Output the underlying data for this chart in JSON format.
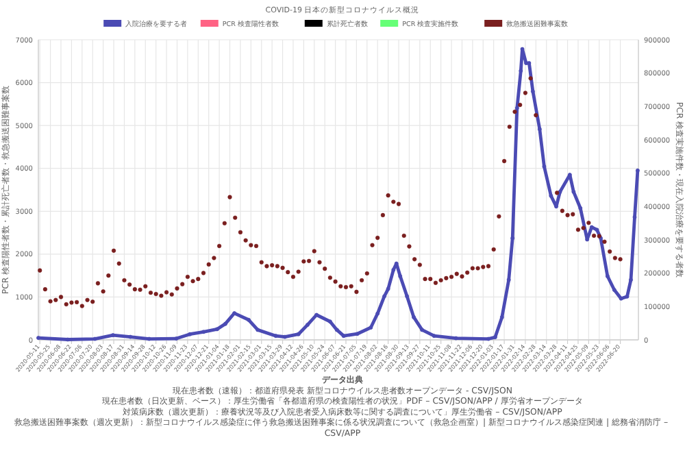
{
  "chart_data": {
    "type": "line",
    "title": "COVID-19 日本の新型コロナウイルス概況",
    "ylabel": "PCR 検査陽性者数・累計死亡者数・救急搬送困難事案数",
    "y2label": "PCR 検査実施件数・現在入院治療を要する者数",
    "legend": "top",
    "grid": true,
    "xlim": [
      "2020-05-09",
      "2022-07-14"
    ],
    "ylim": [
      0,
      7000
    ],
    "yticks": [
      0,
      1000,
      2000,
      3000,
      4000,
      5000,
      6000,
      7000
    ],
    "y2lim": [
      0,
      900000
    ],
    "y2ticks": [
      0,
      100000,
      200000,
      300000,
      400000,
      500000,
      600000,
      700000,
      800000,
      900000
    ],
    "xticks": [
      "2020-05-11",
      "2020-05-25",
      "2020-06-08",
      "2020-06-22",
      "2020-07-06",
      "2020-07-20",
      "2020-08-03",
      "2020-08-17",
      "2020-08-31",
      "2020-09-14",
      "2020-09-28",
      "2020-10-12",
      "2020-10-26",
      "2020-11-09",
      "2020-11-23",
      "2020-12-07",
      "2020-12-21",
      "2021-01-04",
      "2021-01-18",
      "2021-02-01",
      "2021-02-15",
      "2021-03-01",
      "2021-03-15",
      "2021-03-29",
      "2021-04-12",
      "2021-04-26",
      "2021-05-10",
      "2021-05-24",
      "2021-06-07",
      "2021-06-21",
      "2021-07-05",
      "2021-07-19",
      "2021-08-02",
      "2021-08-16",
      "2021-08-30",
      "2021-09-13",
      "2021-09-27",
      "2021-10-11",
      "2021-10-25",
      "2021-11-08",
      "2021-11-22",
      "2021-12-06",
      "2021-12-20",
      "2022-01-03",
      "2022-01-17",
      "2022-01-31",
      "2022-02-14",
      "2022-02-28",
      "2022-03-14",
      "2022-03-28",
      "2022-04-11",
      "2022-04-25",
      "2022-05-09",
      "2022-05-23",
      "2022-06-06",
      "2022-06-20"
    ],
    "series": [
      {
        "name": "入院治療を要する者",
        "axis": "y2",
        "color": "#4b4bb4",
        "marker": "circle",
        "line_style": "solid",
        "x": [
          "2020-05-09",
          "2020-06-17",
          "2020-07-23",
          "2020-08-16",
          "2020-09-08",
          "2020-10-03",
          "2020-11-08",
          "2020-11-26",
          "2020-12-14",
          "2021-01-01",
          "2021-01-12",
          "2021-01-24",
          "2021-02-12",
          "2021-02-24",
          "2021-03-20",
          "2021-04-01",
          "2021-04-19",
          "2021-05-01",
          "2021-05-13",
          "2021-05-31",
          "2021-06-09",
          "2021-06-18",
          "2021-07-06",
          "2021-07-24",
          "2021-08-02",
          "2021-08-11",
          "2021-08-16",
          "2021-08-23",
          "2021-08-27",
          "2021-09-01",
          "2021-09-10",
          "2021-09-19",
          "2021-09-30",
          "2021-10-16",
          "2021-11-14",
          "2021-12-27",
          "2022-01-05",
          "2022-01-14",
          "2022-01-23",
          "2022-01-28",
          "2022-02-03",
          "2022-02-08",
          "2022-02-10",
          "2022-02-15",
          "2022-02-19",
          "2022-02-24",
          "2022-03-05",
          "2022-03-11",
          "2022-03-20",
          "2022-03-27",
          "2022-04-01",
          "2022-04-14",
          "2022-04-19",
          "2022-04-28",
          "2022-05-07",
          "2022-05-13",
          "2022-05-20",
          "2022-05-25",
          "2022-06-03",
          "2022-06-12",
          "2022-06-21",
          "2022-06-29",
          "2022-07-04",
          "2022-07-09",
          "2022-07-13"
        ],
        "values": [
          6000,
          1000,
          3000,
          14000,
          9000,
          3000,
          4000,
          17000,
          24000,
          32000,
          48000,
          80000,
          60000,
          30000,
          12000,
          9000,
          17000,
          45000,
          75000,
          55000,
          30000,
          12000,
          18000,
          37000,
          79000,
          131000,
          153000,
          210000,
          229000,
          191000,
          131000,
          68000,
          30000,
          12000,
          5000,
          3000,
          8000,
          68000,
          180000,
          305000,
          695000,
          807000,
          872000,
          830000,
          830000,
          745000,
          632000,
          520000,
          432000,
          400000,
          444000,
          495000,
          444000,
          395000,
          301000,
          338000,
          330000,
          305000,
          191000,
          150000,
          124000,
          130000,
          180000,
          368000,
          508000
        ]
      },
      {
        "name": "PCR 検査陽性者数",
        "color": "#ff6384"
      },
      {
        "name": "累計死亡者数",
        "color": "#000000"
      },
      {
        "name": "PCR 検査実施件数",
        "color": "#66ff77"
      },
      {
        "name": "救急搬送困難事案数",
        "type": "scatter",
        "color": "#7a1f1f",
        "marker": "circle",
        "x": [
          "2020-05-11",
          "2020-05-18",
          "2020-05-25",
          "2020-06-01",
          "2020-06-08",
          "2020-06-15",
          "2020-06-22",
          "2020-06-29",
          "2020-07-06",
          "2020-07-13",
          "2020-07-20",
          "2020-07-27",
          "2020-08-03",
          "2020-08-10",
          "2020-08-17",
          "2020-08-24",
          "2020-08-31",
          "2020-09-07",
          "2020-09-14",
          "2020-09-21",
          "2020-09-28",
          "2020-10-05",
          "2020-10-12",
          "2020-10-19",
          "2020-10-26",
          "2020-11-02",
          "2020-11-09",
          "2020-11-16",
          "2020-11-23",
          "2020-11-30",
          "2020-12-07",
          "2020-12-14",
          "2020-12-21",
          "2020-12-28",
          "2021-01-04",
          "2021-01-11",
          "2021-01-18",
          "2021-01-25",
          "2021-02-01",
          "2021-02-08",
          "2021-02-15",
          "2021-02-22",
          "2021-03-01",
          "2021-03-08",
          "2021-03-15",
          "2021-03-22",
          "2021-03-29",
          "2021-04-05",
          "2021-04-12",
          "2021-04-19",
          "2021-04-26",
          "2021-05-03",
          "2021-05-10",
          "2021-05-17",
          "2021-05-24",
          "2021-05-31",
          "2021-06-07",
          "2021-06-14",
          "2021-06-21",
          "2021-06-28",
          "2021-07-05",
          "2021-07-12",
          "2021-07-19",
          "2021-07-26",
          "2021-08-02",
          "2021-08-09",
          "2021-08-16",
          "2021-08-23",
          "2021-08-30",
          "2021-09-06",
          "2021-09-13",
          "2021-09-20",
          "2021-09-27",
          "2021-10-04",
          "2021-10-11",
          "2021-10-18",
          "2021-10-25",
          "2021-11-01",
          "2021-11-08",
          "2021-11-15",
          "2021-11-22",
          "2021-11-29",
          "2021-12-06",
          "2021-12-13",
          "2021-12-20",
          "2021-12-27",
          "2022-01-03",
          "2022-01-10",
          "2022-01-17",
          "2022-01-24",
          "2022-01-31",
          "2022-02-07",
          "2022-02-14",
          "2022-02-21",
          "2022-02-28",
          "2022-03-28",
          "2022-04-04",
          "2022-04-11",
          "2022-04-18",
          "2022-04-25",
          "2022-05-02",
          "2022-05-09",
          "2022-05-16",
          "2022-05-23",
          "2022-05-30",
          "2022-06-06",
          "2022-06-13",
          "2022-06-20"
        ],
        "values": [
          1620,
          1180,
          900,
          930,
          1000,
          830,
          870,
          880,
          790,
          930,
          890,
          1320,
          1130,
          1500,
          2080,
          1780,
          1390,
          1290,
          1180,
          1170,
          1250,
          1100,
          1070,
          1030,
          1110,
          1060,
          1200,
          1300,
          1470,
          1370,
          1420,
          1560,
          1760,
          1910,
          2190,
          2720,
          3330,
          2850,
          2510,
          2320,
          2210,
          2190,
          1810,
          1720,
          1740,
          1720,
          1680,
          1580,
          1470,
          1590,
          1830,
          1840,
          2070,
          1810,
          1660,
          1450,
          1360,
          1250,
          1230,
          1250,
          1120,
          1390,
          1550,
          2210,
          2380,
          2910,
          3370,
          3220,
          3170,
          2430,
          2180,
          1880,
          1750,
          1420,
          1420,
          1330,
          1390,
          1440,
          1470,
          1540,
          1480,
          1570,
          1670,
          1670,
          1700,
          1720,
          2110,
          2880,
          4170,
          4970,
          5320,
          5480,
          5760,
          6100,
          5240,
          3430,
          3010,
          2910,
          2930,
          2570,
          2610,
          2730,
          2430,
          2420,
          2290,
          2060,
          1910,
          1880
        ]
      }
    ],
    "annotations": [
      "データ出典",
      "現在患者数（速報）：都道府県発表 新型コロナウイルス患者数オープンデータ - CSV/JSON",
      "現在患者数（日次更新、ベース）：厚生労働省「各都道府県の検査陽性者の状況」PDF – CSV/JSON/APP / 厚労省オープンデータ",
      "対策病床数（週次更新）：療養状況等及び入院患者受入病床数等に関する調査について」厚生労働省 – CSV/JSON/APP",
      "救急搬送困難事案数（週次更新）：新型コロナウイルス感染症に伴う救急搬送困難事案に係る状況調査について（救急企画室）| 新型コロナウイルス感染症関連 | 総務省消防庁 – CSV/APP"
    ]
  }
}
